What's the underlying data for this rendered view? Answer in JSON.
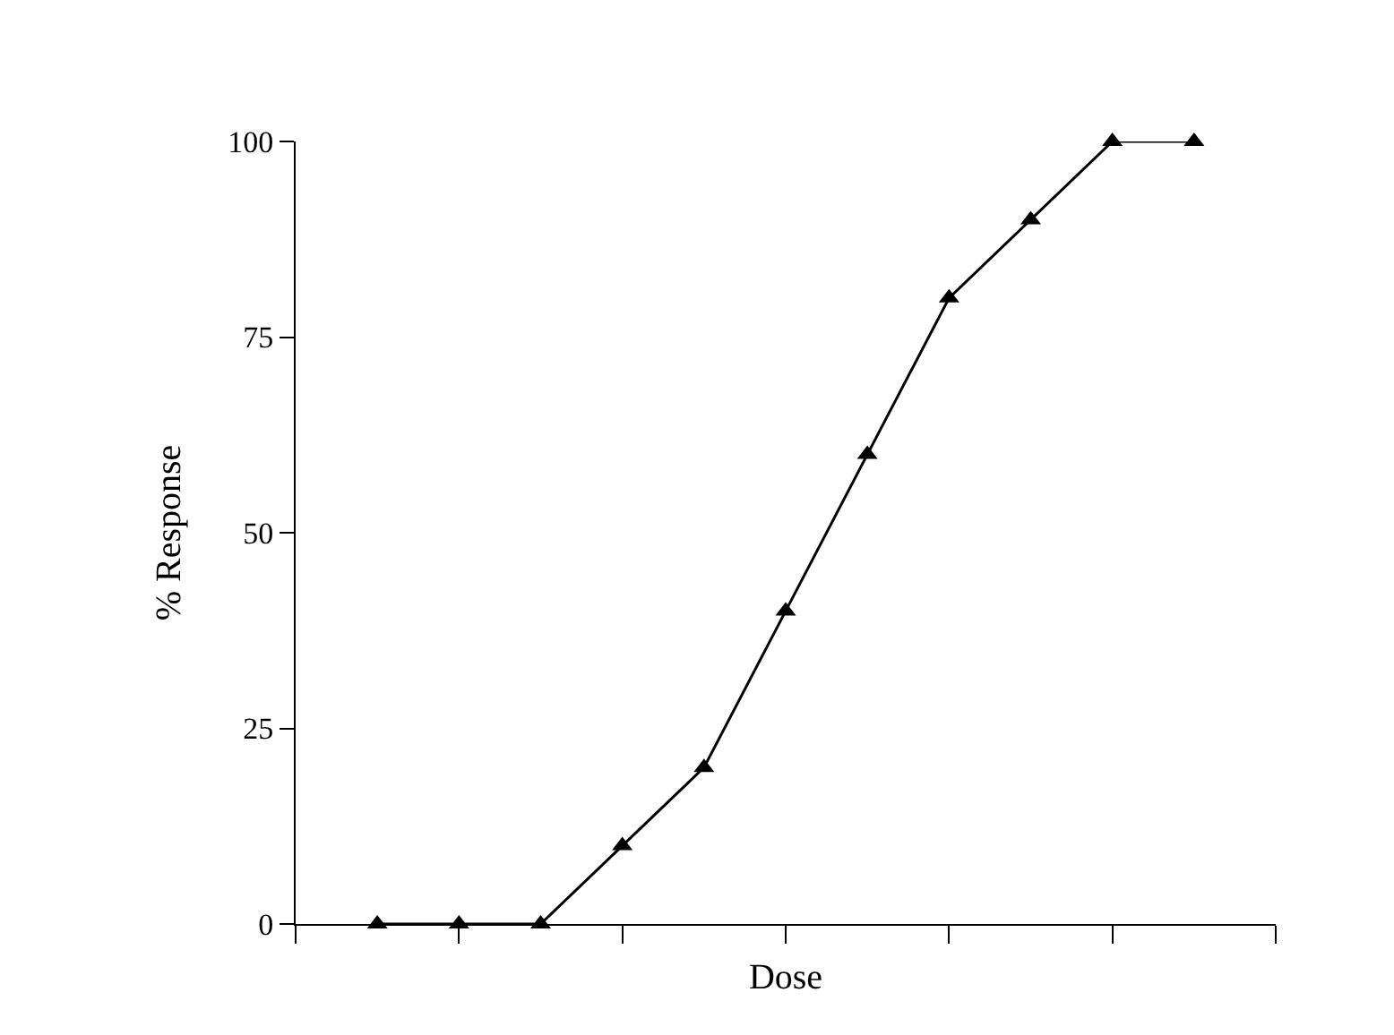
{
  "chart_data": {
    "type": "line",
    "xlabel": "Dose",
    "ylabel": "% Response",
    "categories": [
      null,
      null,
      null,
      null,
      null,
      null,
      null,
      null,
      null,
      null,
      null
    ],
    "values": [
      0,
      0,
      0,
      10,
      20,
      40,
      60,
      80,
      90,
      100,
      100
    ],
    "color": "#000000",
    "marker": "triangle",
    "line_style": "solid",
    "ylim": [
      0,
      100
    ],
    "yticks": [
      0,
      25,
      50,
      75,
      100
    ]
  }
}
